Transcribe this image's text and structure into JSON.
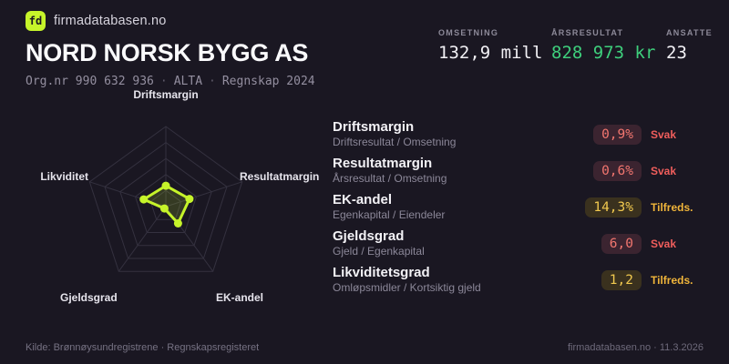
{
  "header": {
    "logo_text": "fd",
    "site": "firmadatabasen.no",
    "company": "NORD NORSK BYGG AS",
    "org_parts": {
      "orgnr": "Org.nr 990 632 936",
      "sep": "·",
      "place": "ALTA",
      "report": "Regnskap 2024"
    },
    "stats": [
      {
        "label": "OMSETNING",
        "value": "132,9 mill"
      },
      {
        "label": "ÅRSRESULTAT",
        "value": "828 973 kr"
      },
      {
        "label": "ANSATTE",
        "value": "23"
      }
    ]
  },
  "chart_data": {
    "type": "radar",
    "axes": [
      "Driftsmargin",
      "Resultatmargin",
      "EK-andel",
      "Gjeldsgrad",
      "Likviditet"
    ],
    "axis_values": [
      "0,9%",
      "0,6%",
      "14,3%",
      "6,0",
      "1,2"
    ],
    "values_normalized": [
      0.26,
      0.31,
      0.26,
      0.03,
      0.29
    ],
    "rings": 5,
    "ring_max": 1.0,
    "grid": "pentagon",
    "legend": "none"
  },
  "metrics": [
    {
      "title": "Driftsmargin",
      "formula": "Driftsresultat / Omsetning",
      "value": "0,9%",
      "rating": "Svak",
      "status": "svak"
    },
    {
      "title": "Resultatmargin",
      "formula": "Årsresultat / Omsetning",
      "value": "0,6%",
      "rating": "Svak",
      "status": "svak"
    },
    {
      "title": "EK-andel",
      "formula": "Egenkapital / Eiendeler",
      "value": "14,3%",
      "rating": "Tilfreds.",
      "status": "tilfreds"
    },
    {
      "title": "Gjeldsgrad",
      "formula": "Gjeld / Egenkapital",
      "value": "6,0",
      "rating": "Svak",
      "status": "svak"
    },
    {
      "title": "Likviditetsgrad",
      "formula": "Omløpsmidler / Kortsiktig gjeld",
      "value": "1,2",
      "rating": "Tilfreds.",
      "status": "tilfreds"
    }
  ],
  "footer": {
    "left": "Kilde: Brønnøysundregistrene · Regnskapsregisteret",
    "right": "firmadatabasen.no · 11.3.2026"
  },
  "colors": {
    "background": "#1a1722",
    "accent_lime": "#c6f42a",
    "positive_green": "#3ecf7c",
    "danger_red": "#f0605c",
    "warning_amber": "#efb43a",
    "grid": "#34313f"
  }
}
